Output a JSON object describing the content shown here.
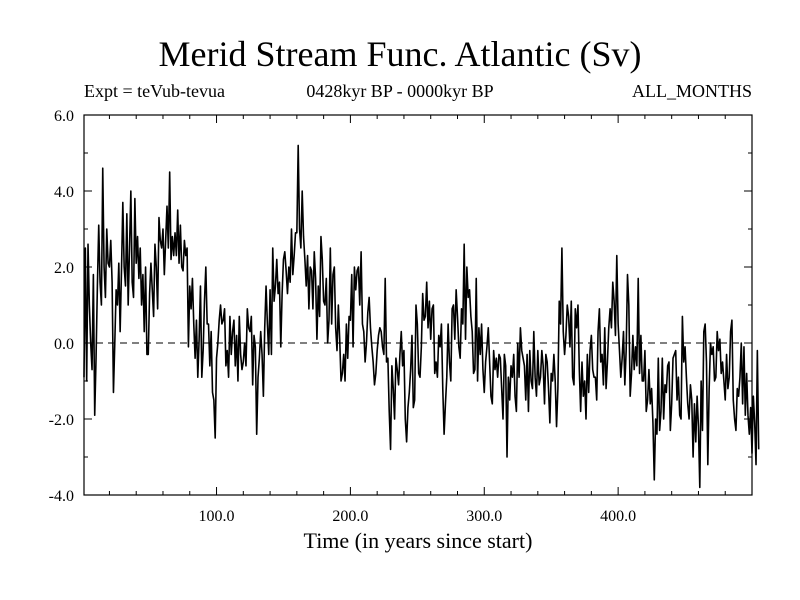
{
  "chart_data": {
    "type": "line",
    "title": "Merid Stream Func. Atlantic (Sv)",
    "subtitle_left": "Expt = teVub-tevua",
    "subtitle_center": "0428kyr BP - 0000kyr BP",
    "subtitle_right": "ALL_MONTHS",
    "xlabel": "Time (in years since start)",
    "ylabel": "",
    "xlim": [
      1,
      500
    ],
    "ylim": [
      -4.0,
      6.0
    ],
    "xticks": [
      100,
      200,
      300,
      400
    ],
    "xtick_labels": [
      "100.0",
      "200.0",
      "300.0",
      "400.0"
    ],
    "yticks": [
      -4,
      -2,
      0,
      2,
      4,
      6
    ],
    "ytick_labels": [
      "-4.0",
      "-2.0",
      "0.0",
      "2.0",
      "4.0",
      "6.0"
    ],
    "reference_line": {
      "y": 0,
      "style": "dashed"
    },
    "series": [
      {
        "color": "#000000",
        "x_start": 1,
        "x_step": 1,
        "values": [
          -0.9,
          2.5,
          -1.0,
          2.6,
          1.0,
          0.0,
          -0.7,
          1.8,
          -1.9,
          -0.4,
          1.5,
          3.1,
          1.6,
          1.0,
          4.6,
          2.0,
          1.2,
          3.0,
          2.1,
          2.0,
          2.7,
          1.6,
          -1.3,
          0.0,
          1.4,
          1.0,
          2.1,
          0.3,
          1.9,
          3.7,
          2.0,
          1.5,
          3.4,
          1.0,
          2.5,
          4.0,
          1.6,
          1.2,
          3.8,
          2.1,
          2.8,
          1.7,
          2.5,
          1.0,
          1.8,
          0.3,
          2.0,
          -0.3,
          -0.3,
          1.3,
          2.1,
          1.4,
          0.7,
          2.6,
          2.0,
          0.9,
          3.3,
          2.7,
          2.5,
          3.0,
          1.8,
          2.7,
          3.6,
          2.5,
          4.5,
          2.2,
          2.8,
          2.3,
          2.9,
          2.3,
          3.5,
          2.1,
          3.1,
          2.0,
          1.9,
          2.7,
          2.3,
          2.5,
          -0.1,
          1.5,
          0.9,
          1.7,
          0.5,
          -0.4,
          0.6,
          -0.9,
          0.1,
          1.5,
          -0.9,
          -0.2,
          1.1,
          2.0,
          0.5,
          0.5,
          -0.6,
          0.3,
          -1.3,
          -1.5,
          -2.5,
          -0.4,
          0.0,
          0.6,
          1.0,
          0.5,
          0.6,
          0.9,
          -0.6,
          -0.2,
          -0.9,
          0.7,
          -0.3,
          0.3,
          0.6,
          -0.6,
          0.2,
          -1.0,
          0.7,
          -0.3,
          -0.7,
          -0.5,
          0.0,
          -0.6,
          0.9,
          0.4,
          0.3,
          0.7,
          -1.1,
          0.2,
          -0.1,
          -2.4,
          -0.9,
          -0.4,
          0.3,
          -0.3,
          -1.4,
          0.4,
          1.5,
          0.5,
          -0.3,
          1.4,
          -0.3,
          2.5,
          1.1,
          1.5,
          2.2,
          1.3,
          1.6,
          -0.1,
          1.3,
          2.2,
          2.4,
          1.9,
          1.3,
          2.0,
          1.6,
          3.0,
          1.8,
          2.3,
          2.9,
          2.9,
          5.2,
          3.0,
          2.5,
          4.0,
          2.8,
          2.2,
          1.5,
          2.3,
          0.9,
          2.0,
          1.9,
          0.9,
          2.4,
          1.7,
          0.1,
          1.5,
          0.7,
          2.8,
          2.2,
          1.1,
          1.0,
          1.7,
          0.0,
          0.6,
          2.5,
          0.5,
          1.8,
          2.0,
          0.4,
          -0.2,
          1.0,
          0.1,
          -1.0,
          -0.8,
          -0.3,
          -1.0,
          0.5,
          -0.4,
          0.7,
          0.6,
          1.8,
          -0.1,
          2.0,
          1.4,
          1.9,
          2.0,
          1.0,
          2.4,
          0.5,
          0.3,
          -0.5,
          0.0,
          0.8,
          1.2,
          0.4,
          -0.1,
          -0.5,
          -1.1,
          -0.8,
          -0.2,
          0.2,
          0.4,
          0.3,
          -0.1,
          -0.3,
          1.7,
          -0.5,
          -0.4,
          -1.8,
          -2.8,
          -0.6,
          -1.2,
          -2.0,
          -0.4,
          -0.7,
          -1.1,
          -0.3,
          0.3,
          -0.6,
          -0.2,
          -2.0,
          -2.6,
          -1.7,
          -1.3,
          -0.7,
          0.2,
          -1.7,
          -1.5,
          1.0,
          0.5,
          -0.8,
          -0.9,
          -0.1,
          1.3,
          0.6,
          0.7,
          1.6,
          0.4,
          1.1,
          0.1,
          0.9,
          1.0,
          -0.8,
          -0.5,
          -0.9,
          0.2,
          -0.1,
          0.5,
          -1.2,
          -2.4,
          -1.6,
          -0.9,
          0.5,
          -0.5,
          -1.0,
          0.9,
          1.0,
          0.1,
          1.4,
          0.7,
          -0.1,
          -0.4,
          0.9,
          0.5,
          2.6,
          0.1,
          2.0,
          1.2,
          1.4,
          0.7,
          0.3,
          -0.8,
          -0.7,
          1.7,
          -1.0,
          0.4,
          -0.3,
          0.5,
          -0.7,
          -1.3,
          -0.5,
          -0.1,
          0.4,
          -0.5,
          -1.4,
          -1.6,
          -0.2,
          -0.7,
          -0.4,
          -0.9,
          -0.3,
          -0.4,
          -1.2,
          -2.0,
          -0.3,
          -0.6,
          -3.0,
          -0.9,
          -1.5,
          -0.6,
          -0.9,
          -0.3,
          -1.4,
          -1.8,
          0.0,
          -0.9,
          0.4,
          -0.2,
          -0.4,
          -0.6,
          -1.5,
          -0.3,
          -1.8,
          -0.2,
          -1.0,
          -1.2,
          0.3,
          -0.9,
          -1.4,
          -0.2,
          -1.1,
          -0.9,
          -0.2,
          -0.6,
          -1.6,
          -0.3,
          -0.5,
          -1.2,
          -2.1,
          -0.8,
          -1.0,
          -0.3,
          -1.0,
          -2.2,
          -1.2,
          1.1,
          0.5,
          2.5,
          0.3,
          -0.3,
          0.2,
          1.0,
          0.7,
          -0.1,
          1.1,
          -0.9,
          -1.1,
          0.9,
          0.4,
          1.0,
          -0.7,
          -1.8,
          -0.5,
          -1.4,
          -1.0,
          -2.0,
          -0.3,
          -1.3,
          -0.2,
          0.2,
          -0.7,
          -0.9,
          -0.9,
          -1.5,
          0.3,
          0.9,
          -0.5,
          -0.3,
          -1.1,
          0.4,
          -1.2,
          -0.5,
          0.4,
          0.9,
          0.4,
          1.6,
          1.1,
          0.2,
          2.3,
          0.5,
          -0.2,
          -0.9,
          -0.4,
          0.3,
          -1.1,
          -0.2,
          1.8,
          1.0,
          -1.4,
          -0.8,
          0.2,
          -0.7,
          -0.1,
          -0.6,
          1.7,
          -0.8,
          0.2,
          -1.0,
          -1.0,
          -0.2,
          -1.8,
          -1.5,
          -0.7,
          -1.6,
          -1.2,
          -2.1,
          -3.6,
          -2.0,
          -2.4,
          -0.4,
          -2.3,
          -1.8,
          -0.4,
          -2.0,
          -1.1,
          -1.3,
          -0.6,
          -0.5,
          -2.3,
          -1.6,
          -0.4,
          -0.3,
          -0.2,
          -1.5,
          -0.9,
          -1.9,
          -2.0,
          0.7,
          -0.5,
          -0.1,
          -0.9,
          -1.6,
          -2.0,
          -1.1,
          -1.5,
          -3.0,
          -1.6,
          -2.6,
          -1.4,
          -2.2,
          -3.8,
          -1.0,
          -2.3,
          0.3,
          0.5,
          -0.5,
          -3.2,
          -1.2,
          0.0,
          -0.3,
          -0.1,
          -1.0,
          -0.9,
          0.3,
          -0.2,
          0.1,
          -0.8,
          -0.5,
          -1.0,
          -1.5,
          -0.3,
          -1.2,
          -0.9,
          0.3,
          0.6,
          -1.5,
          -2.0,
          -2.3,
          -1.2,
          -1.4,
          -0.9,
          0.0,
          -1.6,
          -0.1,
          -1.9,
          -0.8,
          -1.9,
          -2.4,
          -1.7,
          -2.9,
          -1.4,
          -2.1,
          -3.2,
          -0.2,
          -2.8
        ]
      }
    ]
  }
}
